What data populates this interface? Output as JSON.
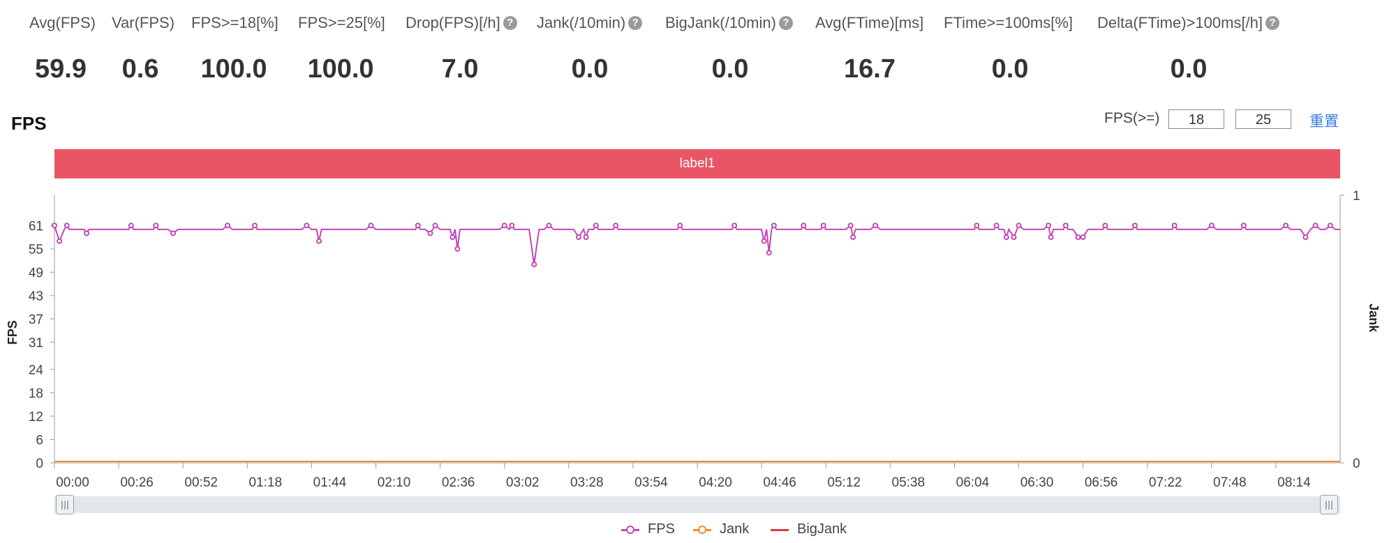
{
  "stats": [
    {
      "label": "Avg(FPS)",
      "value": "59.9",
      "help": false
    },
    {
      "label": "Var(FPS)",
      "value": "0.6",
      "help": false
    },
    {
      "label": "FPS>=18[%]",
      "value": "100.0",
      "help": false
    },
    {
      "label": "FPS>=25[%]",
      "value": "100.0",
      "help": false
    },
    {
      "label": "Drop(FPS)[/h]",
      "value": "7.0",
      "help": true
    },
    {
      "label": "Jank(/10min)",
      "value": "0.0",
      "help": true
    },
    {
      "label": "BigJank(/10min)",
      "value": "0.0",
      "help": true
    },
    {
      "label": "Avg(FTime)[ms]",
      "value": "16.7",
      "help": false
    },
    {
      "label": "FTime>=100ms[%]",
      "value": "0.0",
      "help": false
    },
    {
      "label": "Delta(FTime)>100ms[/h]",
      "value": "0.0",
      "help": true
    }
  ],
  "help_glyph": "?",
  "section_title": "FPS",
  "threshold": {
    "label": "FPS(>=)",
    "values": [
      "18",
      "25"
    ]
  },
  "reset_label": "重置",
  "band_label": "label1",
  "colors": {
    "fps": "#c246b5",
    "jank": "#f08a2e",
    "bigjank": "#e03a3a",
    "band": "#ea5565",
    "link": "#3b7ddd"
  },
  "legend": [
    {
      "name": "FPS",
      "color": "#c246b5"
    },
    {
      "name": "Jank",
      "color": "#f08a2e"
    },
    {
      "name": "BigJank",
      "color": "#e03a3a"
    }
  ],
  "chart_data": {
    "type": "line",
    "ylabel": "FPS",
    "y2label": "Jank",
    "y_ticks": [
      0,
      6,
      12,
      18,
      24,
      31,
      37,
      43,
      49,
      55,
      61
    ],
    "y2_ticks": [
      0,
      1
    ],
    "x_ticks": [
      "00:00",
      "00:26",
      "00:52",
      "01:18",
      "01:44",
      "02:10",
      "02:36",
      "03:02",
      "03:28",
      "03:54",
      "04:20",
      "04:46",
      "05:12",
      "05:38",
      "06:04",
      "06:30",
      "06:56",
      "07:22",
      "07:48",
      "08:14"
    ],
    "xlim": [
      "00:00",
      "08:40"
    ],
    "ylim": [
      0,
      67
    ],
    "fps_baseline": 60,
    "fps_peaks": [
      "00:00",
      "00:05",
      "00:31",
      "00:41",
      "01:10",
      "01:21",
      "01:42",
      "02:08",
      "02:27",
      "02:34",
      "03:02",
      "03:05",
      "03:20",
      "03:39",
      "03:47",
      "04:13",
      "04:35",
      "04:51",
      "05:03",
      "05:11",
      "05:22",
      "05:32",
      "06:13",
      "06:21",
      "06:30",
      "06:42",
      "06:49",
      "07:05",
      "07:17",
      "07:33",
      "07:48",
      "08:01",
      "08:18",
      "08:30",
      "08:36"
    ],
    "fps_dips": [
      {
        "x": "00:02",
        "y": 57
      },
      {
        "x": "00:13",
        "y": 59
      },
      {
        "x": "00:48",
        "y": 59
      },
      {
        "x": "01:47",
        "y": 57
      },
      {
        "x": "02:32",
        "y": 59
      },
      {
        "x": "02:41",
        "y": 58
      },
      {
        "x": "02:43",
        "y": 55
      },
      {
        "x": "03:14",
        "y": 51
      },
      {
        "x": "03:32",
        "y": 58
      },
      {
        "x": "03:35",
        "y": 58
      },
      {
        "x": "04:47",
        "y": 57
      },
      {
        "x": "04:49",
        "y": 54
      },
      {
        "x": "05:23",
        "y": 58
      },
      {
        "x": "06:25",
        "y": 58
      },
      {
        "x": "06:28",
        "y": 58
      },
      {
        "x": "06:43",
        "y": 58
      },
      {
        "x": "06:54",
        "y": 58
      },
      {
        "x": "06:56",
        "y": 58
      },
      {
        "x": "08:26",
        "y": 58
      }
    ],
    "jank_value": 0,
    "bigjank_value": 0,
    "series": [
      {
        "name": "FPS"
      },
      {
        "name": "Jank"
      },
      {
        "name": "BigJank"
      }
    ]
  }
}
